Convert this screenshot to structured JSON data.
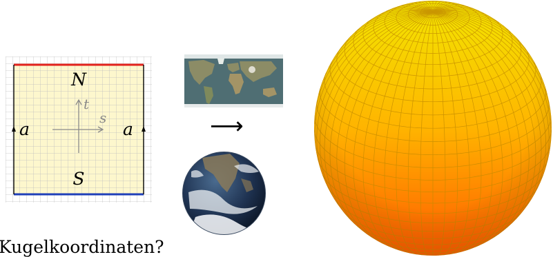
{
  "square": {
    "north_label": "N",
    "south_label": "S",
    "t_label": "t",
    "s_label": "s",
    "left_edge_label": "a",
    "right_edge_label": "a",
    "fill_color": "#fdf6c4",
    "grid_color": "#bfbfbf",
    "north_edge_color": "#e3231d",
    "south_edge_color": "#1f3fb8"
  },
  "map_thumbnail": {
    "ocean_color": "#4f6e73",
    "land_color": "#8c8c66"
  },
  "arrow": {
    "glyph": "⟶"
  },
  "earth": {
    "ocean_color": "#1f3352",
    "cloud_color": "#eef1f4"
  },
  "sphere": {
    "colors": {
      "top": "#f2e600",
      "middle": "#ffb400",
      "bottom": "#ff5a00",
      "grid": "#c28a00"
    }
  },
  "caption": {
    "text": "Kugelkoordinaten?"
  }
}
